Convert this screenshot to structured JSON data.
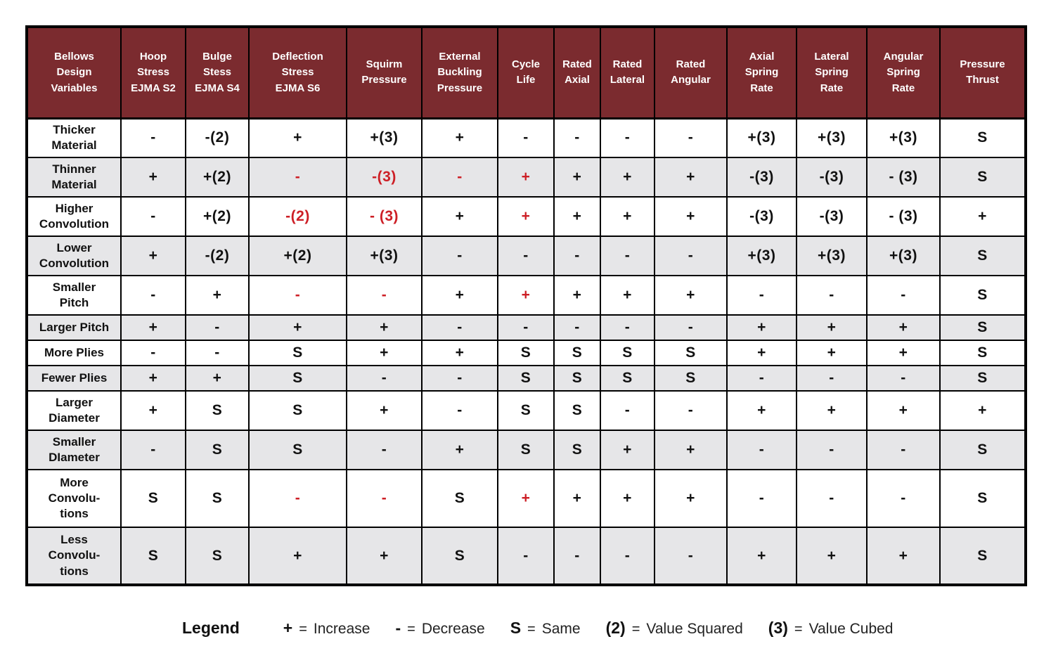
{
  "colors": {
    "header_bg": "#7b2b2f",
    "row_alt_bg": "#e6e6e8",
    "red_text": "#cd1f26"
  },
  "table": {
    "columns": [
      "Bellows\nDesign\nVariables",
      "Hoop\nStress\nEJMA S2",
      "Bulge\nStess\nEJMA S4",
      "Deflection\nStress\nEJMA  S6",
      "Squirm\nPressure",
      "External\nBuckling\nPressure",
      "Cycle\nLife",
      "Rated\nAxial",
      "Rated\nLateral",
      "Rated\nAngular",
      "Axial\nSpring\nRate",
      "Lateral\nSpring\nRate",
      "Angular\nSpring\nRate",
      "Pressure\nThrust"
    ],
    "rows": [
      {
        "label": "Thicker\nMaterial",
        "values": [
          "-",
          "-(2)",
          "+",
          "+(3)",
          "+",
          "-",
          "-",
          "-",
          "-",
          "+(3)",
          "+(3)",
          "+(3)",
          "S"
        ],
        "red": []
      },
      {
        "label": "Thinner\nMaterial",
        "values": [
          "+",
          "+(2)",
          "-",
          "-(3)",
          "-",
          "+",
          "+",
          "+",
          "+",
          "-(3)",
          "-(3)",
          "- (3)",
          "S"
        ],
        "red": [
          2,
          3,
          4,
          5
        ]
      },
      {
        "label": "Higher\nConvolution",
        "values": [
          "-",
          "+(2)",
          "-(2)",
          "- (3)",
          "+",
          "+",
          "+",
          "+",
          "+",
          "-(3)",
          "-(3)",
          "- (3)",
          "+"
        ],
        "red": [
          2,
          3,
          5
        ]
      },
      {
        "label": "Lower\nConvolution",
        "values": [
          "+",
          "-(2)",
          "+(2)",
          "+(3)",
          "-",
          "-",
          "-",
          "-",
          "-",
          "+(3)",
          "+(3)",
          "+(3)",
          "S"
        ],
        "red": []
      },
      {
        "label": "Smaller\nPitch",
        "values": [
          "-",
          "+",
          "-",
          "-",
          "+",
          "+",
          "+",
          "+",
          "+",
          "-",
          "-",
          "-",
          "S"
        ],
        "red": [
          2,
          3,
          5
        ]
      },
      {
        "label": "Larger Pitch",
        "values": [
          "+",
          "-",
          "+",
          "+",
          "-",
          "-",
          "-",
          "-",
          "-",
          "+",
          "+",
          "+",
          "S"
        ],
        "red": []
      },
      {
        "label": "More Plies",
        "values": [
          "-",
          "-",
          "S",
          "+",
          "+",
          "S",
          "S",
          "S",
          "S",
          "+",
          "+",
          "+",
          "S"
        ],
        "red": []
      },
      {
        "label": "Fewer Plies",
        "values": [
          "+",
          "+",
          "S",
          "-",
          "-",
          "S",
          "S",
          "S",
          "S",
          "-",
          "-",
          "-",
          "S"
        ],
        "red": []
      },
      {
        "label": "Larger\nDiameter",
        "values": [
          "+",
          "S",
          "S",
          "+",
          "-",
          "S",
          "S",
          "-",
          "-",
          "+",
          "+",
          "+",
          "+"
        ],
        "red": []
      },
      {
        "label": "Smaller\nDIameter",
        "values": [
          "-",
          "S",
          "S",
          "-",
          "+",
          "S",
          "S",
          "+",
          "+",
          "-",
          "-",
          "-",
          "S"
        ],
        "red": []
      },
      {
        "label": "More\nConvolu-\ntions",
        "values": [
          "S",
          "S",
          "-",
          "-",
          "S",
          "+",
          "+",
          "+",
          "+",
          "-",
          "-",
          "-",
          "S"
        ],
        "red": [
          2,
          3,
          5
        ]
      },
      {
        "label": "Less\nConvolu-\ntions",
        "values": [
          "S",
          "S",
          "+",
          "+",
          "S",
          "-",
          "-",
          "-",
          "-",
          "+",
          "+",
          "+",
          "S"
        ],
        "red": []
      }
    ]
  },
  "legend": {
    "title": "Legend",
    "items": [
      {
        "symbol": "+",
        "eq": "=",
        "label": "Increase"
      },
      {
        "symbol": "-",
        "eq": "=",
        "label": "Decrease"
      },
      {
        "symbol": "S",
        "eq": "=",
        "label": "Same"
      },
      {
        "symbol": "(2)",
        "eq": "=",
        "label": "Value Squared"
      },
      {
        "symbol": "(3)",
        "eq": "=",
        "label": "Value Cubed"
      }
    ]
  }
}
